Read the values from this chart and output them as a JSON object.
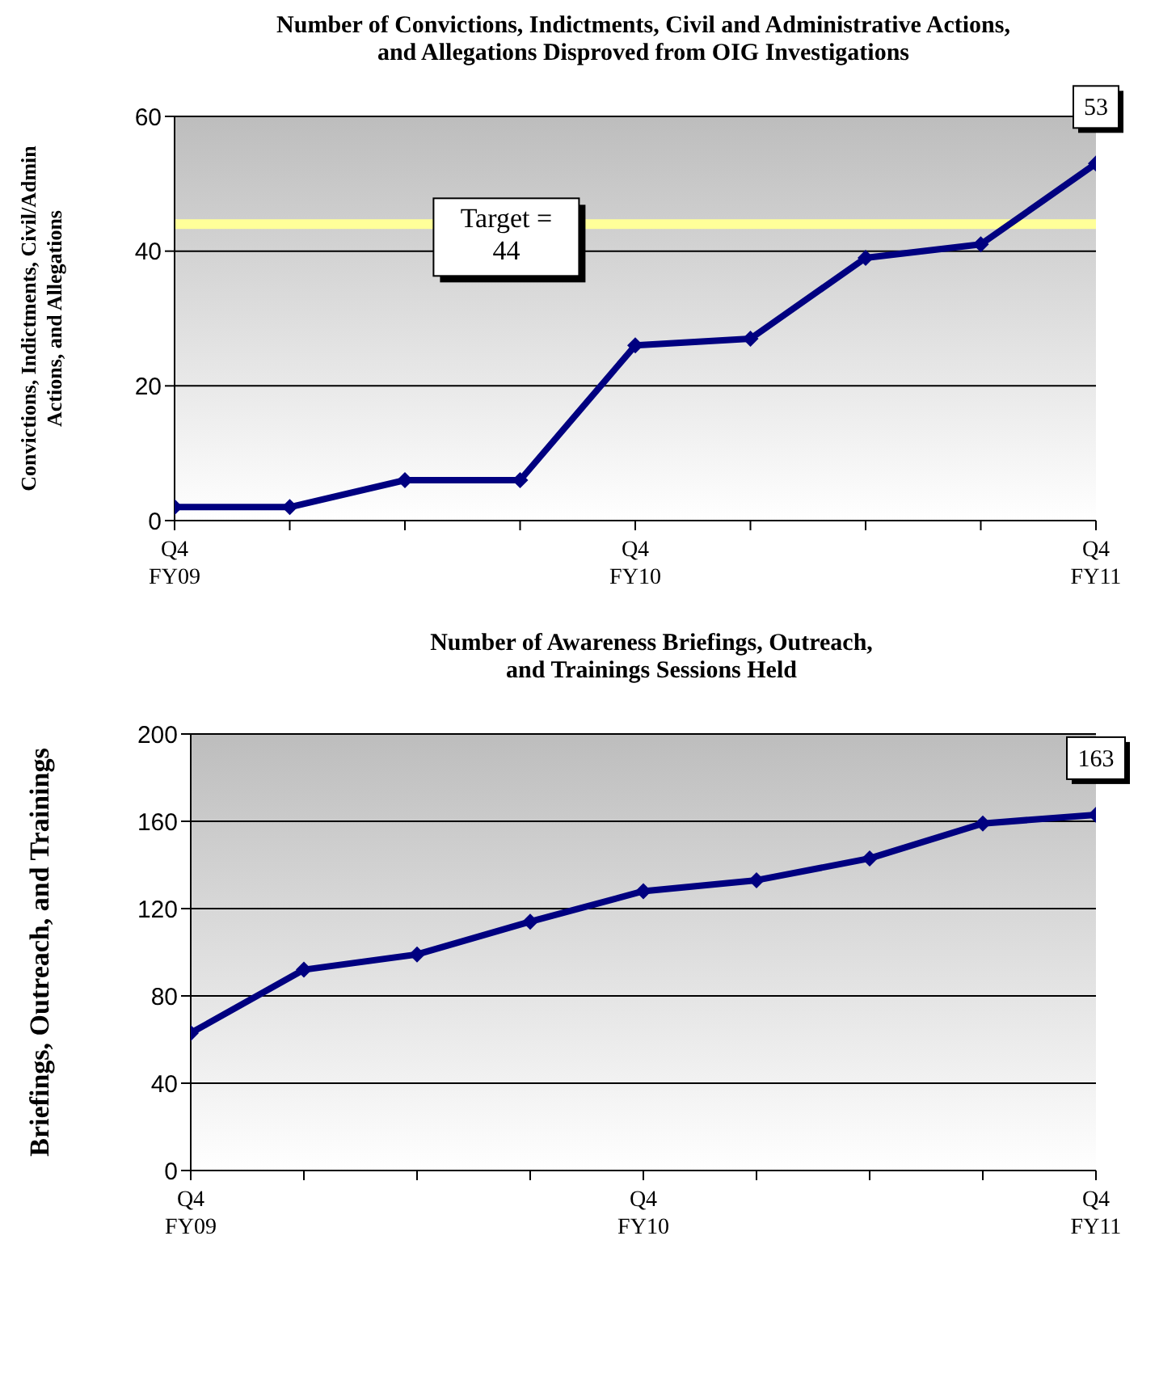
{
  "chart_data": [
    {
      "type": "line",
      "title": "Number of Convictions, Indictments, Civil and Administrative Actions, and Allegations Disproved from OIG Investigations",
      "ylabel": "Convictions, Indictments, Civil/Admin Actions, and Allegations",
      "categories": [
        "Q4 FY09",
        null,
        null,
        null,
        "Q4 FY10",
        null,
        null,
        null,
        "Q4 FY11"
      ],
      "series": [
        {
          "color": "#000080",
          "values": [
            2,
            2,
            6,
            6,
            26,
            27,
            39,
            41,
            53
          ],
          "value_labels": [
            null,
            null,
            null,
            null,
            null,
            null,
            null,
            null,
            "53"
          ]
        }
      ],
      "ylim": [
        0,
        60
      ],
      "yticks": [
        0,
        20,
        40,
        60
      ],
      "grid": "y",
      "marker": "diamond",
      "line_style": "solid",
      "ref_lines": [
        {
          "axis": "y",
          "value": 44,
          "label": "Target = 44",
          "color": "#ffff99"
        }
      ]
    },
    {
      "type": "line",
      "title": "Number of Awareness Briefings, Outreach, and Trainings Sessions Held",
      "ylabel": "Briefings, Outreach, and Trainings",
      "categories": [
        "Q4 FY09",
        null,
        null,
        null,
        "Q4 FY10",
        null,
        null,
        null,
        "Q4 FY11"
      ],
      "series": [
        {
          "color": "#000080",
          "values": [
            63,
            92,
            99,
            114,
            128,
            133,
            143,
            159,
            163
          ],
          "value_labels": [
            null,
            null,
            null,
            null,
            null,
            null,
            null,
            null,
            "163"
          ]
        }
      ],
      "ylim": [
        0,
        200
      ],
      "yticks": [
        0,
        40,
        80,
        120,
        160,
        200
      ],
      "grid": "y",
      "marker": "diamond",
      "line_style": "solid"
    }
  ]
}
